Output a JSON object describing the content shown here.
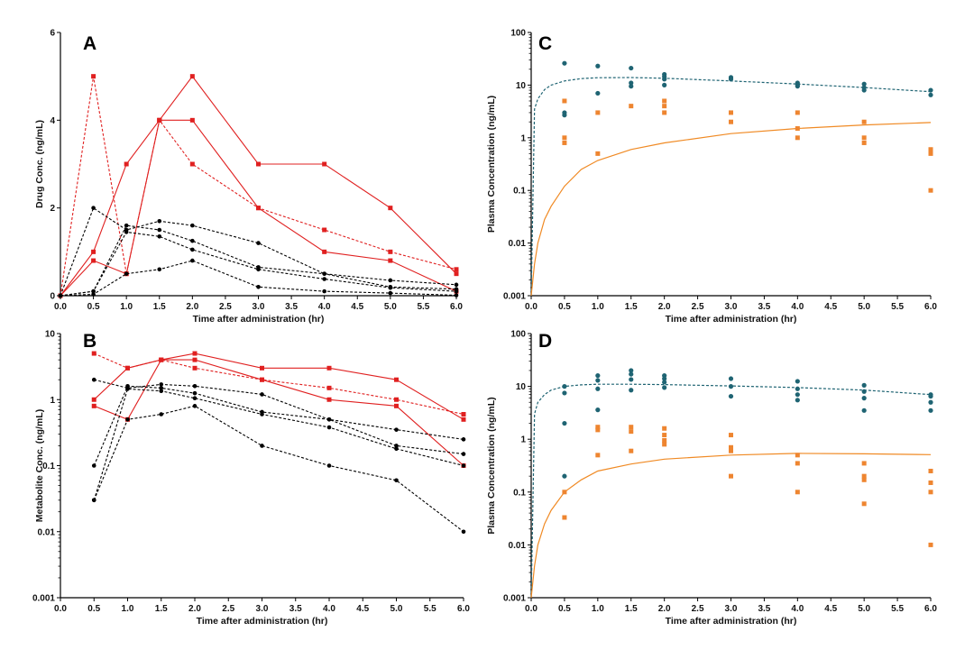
{
  "colors": {
    "red": "#e02020",
    "black": "#000000",
    "teal": "#1f6473",
    "orange": "#ee8530",
    "orange_fit": "#f08a24"
  },
  "x_ticks": [
    "0.0",
    "0.5",
    "1.0",
    "1.5",
    "2.0",
    "2.5",
    "3.0",
    "3.5",
    "4.0",
    "4.5",
    "5.0",
    "5.5",
    "6.0"
  ],
  "chart_data": [
    {
      "panel": "A",
      "type": "line",
      "xlabel": "Time after administration (hr)",
      "ylabel": "Drug Conc. (ng/mL)",
      "xlim": [
        0,
        6
      ],
      "ylim": [
        0,
        6
      ],
      "yscale": "linear",
      "yticks": [
        "0",
        "2",
        "4",
        "6"
      ],
      "legend": "none",
      "series": [
        {
          "color": "red",
          "dash": false,
          "x": [
            0,
            0.5,
            1,
            1.5,
            2,
            3,
            4,
            5,
            6
          ],
          "y": [
            0,
            1,
            3,
            4,
            5,
            3,
            3,
            2,
            0.5
          ]
        },
        {
          "color": "red",
          "dash": false,
          "x": [
            0,
            0.5,
            1,
            1.5,
            2,
            3,
            4,
            5,
            6
          ],
          "y": [
            0,
            0.8,
            0.5,
            4,
            4,
            2,
            1,
            0.8,
            0.1
          ]
        },
        {
          "color": "red",
          "dash": true,
          "x": [
            0,
            0.5,
            1,
            1.5,
            2,
            3,
            4,
            5,
            6
          ],
          "y": [
            0,
            5,
            0.5,
            4,
            3,
            2,
            1.5,
            1,
            0.6
          ]
        },
        {
          "color": "black",
          "dash": true,
          "x": [
            0,
            0.5,
            1,
            1.5,
            2,
            3,
            4,
            5,
            6
          ],
          "y": [
            0,
            2,
            1.5,
            1.7,
            1.6,
            1.2,
            0.5,
            0.35,
            0.25
          ]
        },
        {
          "color": "black",
          "dash": true,
          "x": [
            0,
            0.5,
            1,
            1.5,
            2,
            3,
            4,
            5,
            6
          ],
          "y": [
            0,
            0.1,
            1.6,
            1.5,
            1.25,
            0.65,
            0.5,
            0.2,
            0.15
          ]
        },
        {
          "color": "black",
          "dash": true,
          "x": [
            0,
            0.5,
            1,
            1.5,
            2,
            3,
            4,
            5,
            6
          ],
          "y": [
            0,
            0.1,
            1.45,
            1.35,
            1.05,
            0.6,
            0.38,
            0.18,
            0.1
          ]
        },
        {
          "color": "black",
          "dash": true,
          "x": [
            0,
            0.5,
            1,
            1.5,
            2,
            3,
            4,
            5,
            6
          ],
          "y": [
            0,
            0.03,
            0.5,
            0.6,
            0.8,
            0.2,
            0.1,
            0.06,
            0.01
          ]
        }
      ]
    },
    {
      "panel": "B",
      "type": "line",
      "xlabel": "Time after administration (hr)",
      "ylabel": "Metabolite Conc. (ng/mL)",
      "xlim": [
        0,
        6
      ],
      "ylim": [
        0.001,
        10
      ],
      "yscale": "log",
      "yticks": [
        "0.001",
        "0.01",
        "0.1",
        "1",
        "10"
      ],
      "legend": "none",
      "series": [
        {
          "color": "red",
          "dash": false,
          "x": [
            0.5,
            1,
            1.5,
            2,
            3,
            4,
            5,
            6
          ],
          "y": [
            1,
            3,
            4,
            5,
            3,
            3,
            2,
            0.5
          ]
        },
        {
          "color": "red",
          "dash": false,
          "x": [
            0.5,
            1,
            1.5,
            2,
            3,
            4,
            5,
            6
          ],
          "y": [
            0.8,
            0.5,
            4,
            4,
            2,
            1,
            0.8,
            0.1
          ]
        },
        {
          "color": "red",
          "dash": true,
          "x": [
            0.5,
            1,
            1.5,
            2,
            3,
            4,
            5,
            6
          ],
          "y": [
            5,
            3,
            4,
            3,
            2,
            1.5,
            1,
            0.6
          ]
        },
        {
          "color": "black",
          "dash": true,
          "x": [
            0.5,
            1,
            1.5,
            2,
            3,
            4,
            5,
            6
          ],
          "y": [
            2,
            1.5,
            1.7,
            1.6,
            1.2,
            0.5,
            0.35,
            0.25
          ]
        },
        {
          "color": "black",
          "dash": true,
          "x": [
            0.5,
            1,
            1.5,
            2,
            3,
            4,
            5,
            6
          ],
          "y": [
            0.1,
            1.6,
            1.5,
            1.25,
            0.65,
            0.5,
            0.2,
            0.15
          ]
        },
        {
          "color": "black",
          "dash": true,
          "x": [
            0.5,
            1,
            1.5,
            2,
            3,
            4,
            5,
            6
          ],
          "y": [
            0.03,
            1.45,
            1.35,
            1.05,
            0.6,
            0.38,
            0.18,
            0.1
          ]
        },
        {
          "color": "black",
          "dash": true,
          "x": [
            0.5,
            1,
            1.5,
            2,
            3,
            4,
            5,
            6
          ],
          "y": [
            0.03,
            0.5,
            0.6,
            0.8,
            0.2,
            0.1,
            0.06,
            0.01
          ]
        }
      ]
    },
    {
      "panel": "C",
      "type": "scatter",
      "xlabel": "Time after administration (hr)",
      "ylabel": "Plasma Concentration (ng/mL)",
      "xlim": [
        0,
        6
      ],
      "ylim": [
        0.001,
        100
      ],
      "yscale": "log",
      "yticks": [
        "0.001",
        "0.01",
        "0.1",
        "1",
        "10",
        "100"
      ],
      "legend": "none",
      "scatter": [
        {
          "color": "teal",
          "marker": "circle",
          "x": [
            0.5,
            0.5,
            0.5,
            1,
            1,
            1.5,
            1.5,
            1.5,
            2,
            2,
            2,
            2,
            3,
            3,
            4,
            4,
            4,
            5,
            5,
            5,
            6,
            6
          ],
          "y": [
            26,
            3,
            2.7,
            23,
            7,
            21,
            11,
            9.5,
            16,
            14.5,
            13,
            10,
            14,
            13,
            11,
            10,
            9.5,
            10.5,
            9,
            8,
            8,
            6.5
          ]
        },
        {
          "color": "orange",
          "marker": "square",
          "x": [
            0.5,
            0.5,
            0.5,
            1,
            1,
            1.5,
            2,
            2,
            2,
            3,
            3,
            4,
            4,
            4,
            5,
            5,
            5,
            6,
            6,
            6
          ],
          "y": [
            5,
            1,
            0.8,
            3,
            0.5,
            4,
            5,
            4,
            3,
            3,
            2,
            3,
            1.5,
            1,
            2,
            1,
            0.8,
            0.6,
            0.5,
            0.1
          ]
        }
      ],
      "fits": [
        {
          "color": "teal",
          "dash": true,
          "x": [
            0,
            0.05,
            0.1,
            0.2,
            0.3,
            0.5,
            0.75,
            1,
            1.5,
            2,
            3,
            4,
            5,
            6
          ],
          "y": [
            0.001,
            3.5,
            5.5,
            8.2,
            10,
            12,
            13.3,
            13.8,
            13.9,
            13.5,
            12,
            10.5,
            9,
            7.5
          ]
        },
        {
          "color": "orange_fit",
          "dash": false,
          "x": [
            0,
            0.05,
            0.1,
            0.2,
            0.3,
            0.5,
            0.75,
            1,
            1.5,
            2,
            3,
            4,
            5,
            6
          ],
          "y": [
            0.001,
            0.004,
            0.01,
            0.028,
            0.05,
            0.12,
            0.25,
            0.37,
            0.6,
            0.8,
            1.2,
            1.5,
            1.75,
            1.95
          ]
        }
      ]
    },
    {
      "panel": "D",
      "type": "scatter",
      "xlabel": "Time after administration (hr)",
      "ylabel": "Plasma Concentration (ng/mL)",
      "xlim": [
        0,
        6
      ],
      "ylim": [
        0.001,
        100
      ],
      "yscale": "log",
      "yticks": [
        "0.001",
        "0.01",
        "0.1",
        "1",
        "10",
        "100"
      ],
      "legend": "none",
      "scatter": [
        {
          "color": "teal",
          "marker": "circle",
          "x": [
            0.5,
            0.5,
            0.5,
            0.5,
            1,
            1,
            1,
            1,
            1.5,
            1.5,
            1.5,
            1.5,
            2,
            2,
            2,
            2,
            3,
            3,
            3,
            4,
            4,
            4,
            4,
            5,
            5,
            5,
            5,
            6,
            6,
            6,
            6
          ],
          "y": [
            10,
            7.5,
            2,
            0.2,
            16,
            13,
            9,
            3.6,
            20,
            17,
            13.5,
            8.5,
            16,
            14,
            12,
            9.5,
            14,
            10,
            6.5,
            12.5,
            9,
            7,
            5.5,
            10.5,
            8,
            6,
            3.5,
            7,
            6.5,
            5,
            3.5
          ]
        },
        {
          "color": "orange",
          "marker": "square",
          "x": [
            0.5,
            0.5,
            1,
            1,
            1,
            1.5,
            1.5,
            1.5,
            2,
            2,
            2,
            2,
            3,
            3,
            3,
            3,
            4,
            4,
            4,
            5,
            5,
            5,
            5,
            6,
            6,
            6,
            6
          ],
          "y": [
            0.1,
            0.033,
            1.7,
            1.5,
            0.5,
            1.7,
            1.4,
            0.6,
            1.6,
            1.2,
            0.95,
            0.8,
            1.2,
            0.7,
            0.6,
            0.2,
            0.5,
            0.35,
            0.1,
            0.35,
            0.2,
            0.17,
            0.06,
            0.25,
            0.15,
            0.1,
            0.01
          ]
        }
      ],
      "fits": [
        {
          "color": "teal",
          "dash": true,
          "x": [
            0,
            0.05,
            0.1,
            0.2,
            0.3,
            0.5,
            0.75,
            1,
            1.5,
            2,
            3,
            4,
            5,
            6
          ],
          "y": [
            0.001,
            3,
            5,
            7,
            8.5,
            10,
            10.7,
            11,
            11,
            10.8,
            10.2,
            9.5,
            8.5,
            7
          ]
        },
        {
          "color": "orange_fit",
          "dash": false,
          "x": [
            0,
            0.05,
            0.1,
            0.2,
            0.3,
            0.5,
            0.75,
            1,
            1.5,
            2,
            3,
            4,
            5,
            6
          ],
          "y": [
            0.001,
            0.004,
            0.01,
            0.025,
            0.045,
            0.1,
            0.17,
            0.25,
            0.34,
            0.42,
            0.5,
            0.54,
            0.53,
            0.51
          ]
        }
      ]
    }
  ]
}
